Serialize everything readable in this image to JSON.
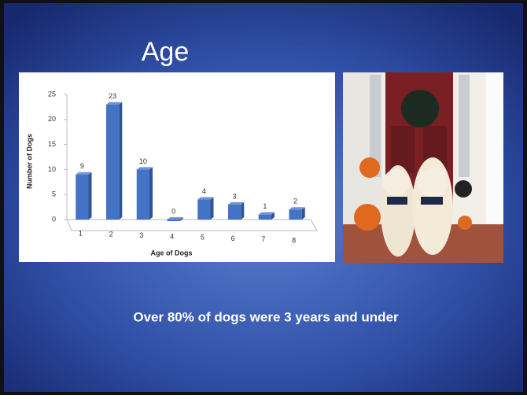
{
  "slide": {
    "title": "Age",
    "caption": "Over 80% of dogs were 3 years and under"
  },
  "chart_data": {
    "type": "bar",
    "x_label": "Age of Dogs",
    "y_label": "Number of Dogs",
    "categories": [
      "1",
      "2",
      "3",
      "4",
      "5",
      "6",
      "7",
      "8"
    ],
    "values": [
      9,
      23,
      10,
      0,
      4,
      3,
      1,
      2
    ],
    "color": "#4472c4",
    "ylim": [
      0,
      25
    ],
    "yticks": [
      0,
      5,
      10,
      15,
      20,
      25
    ],
    "grid": false
  }
}
